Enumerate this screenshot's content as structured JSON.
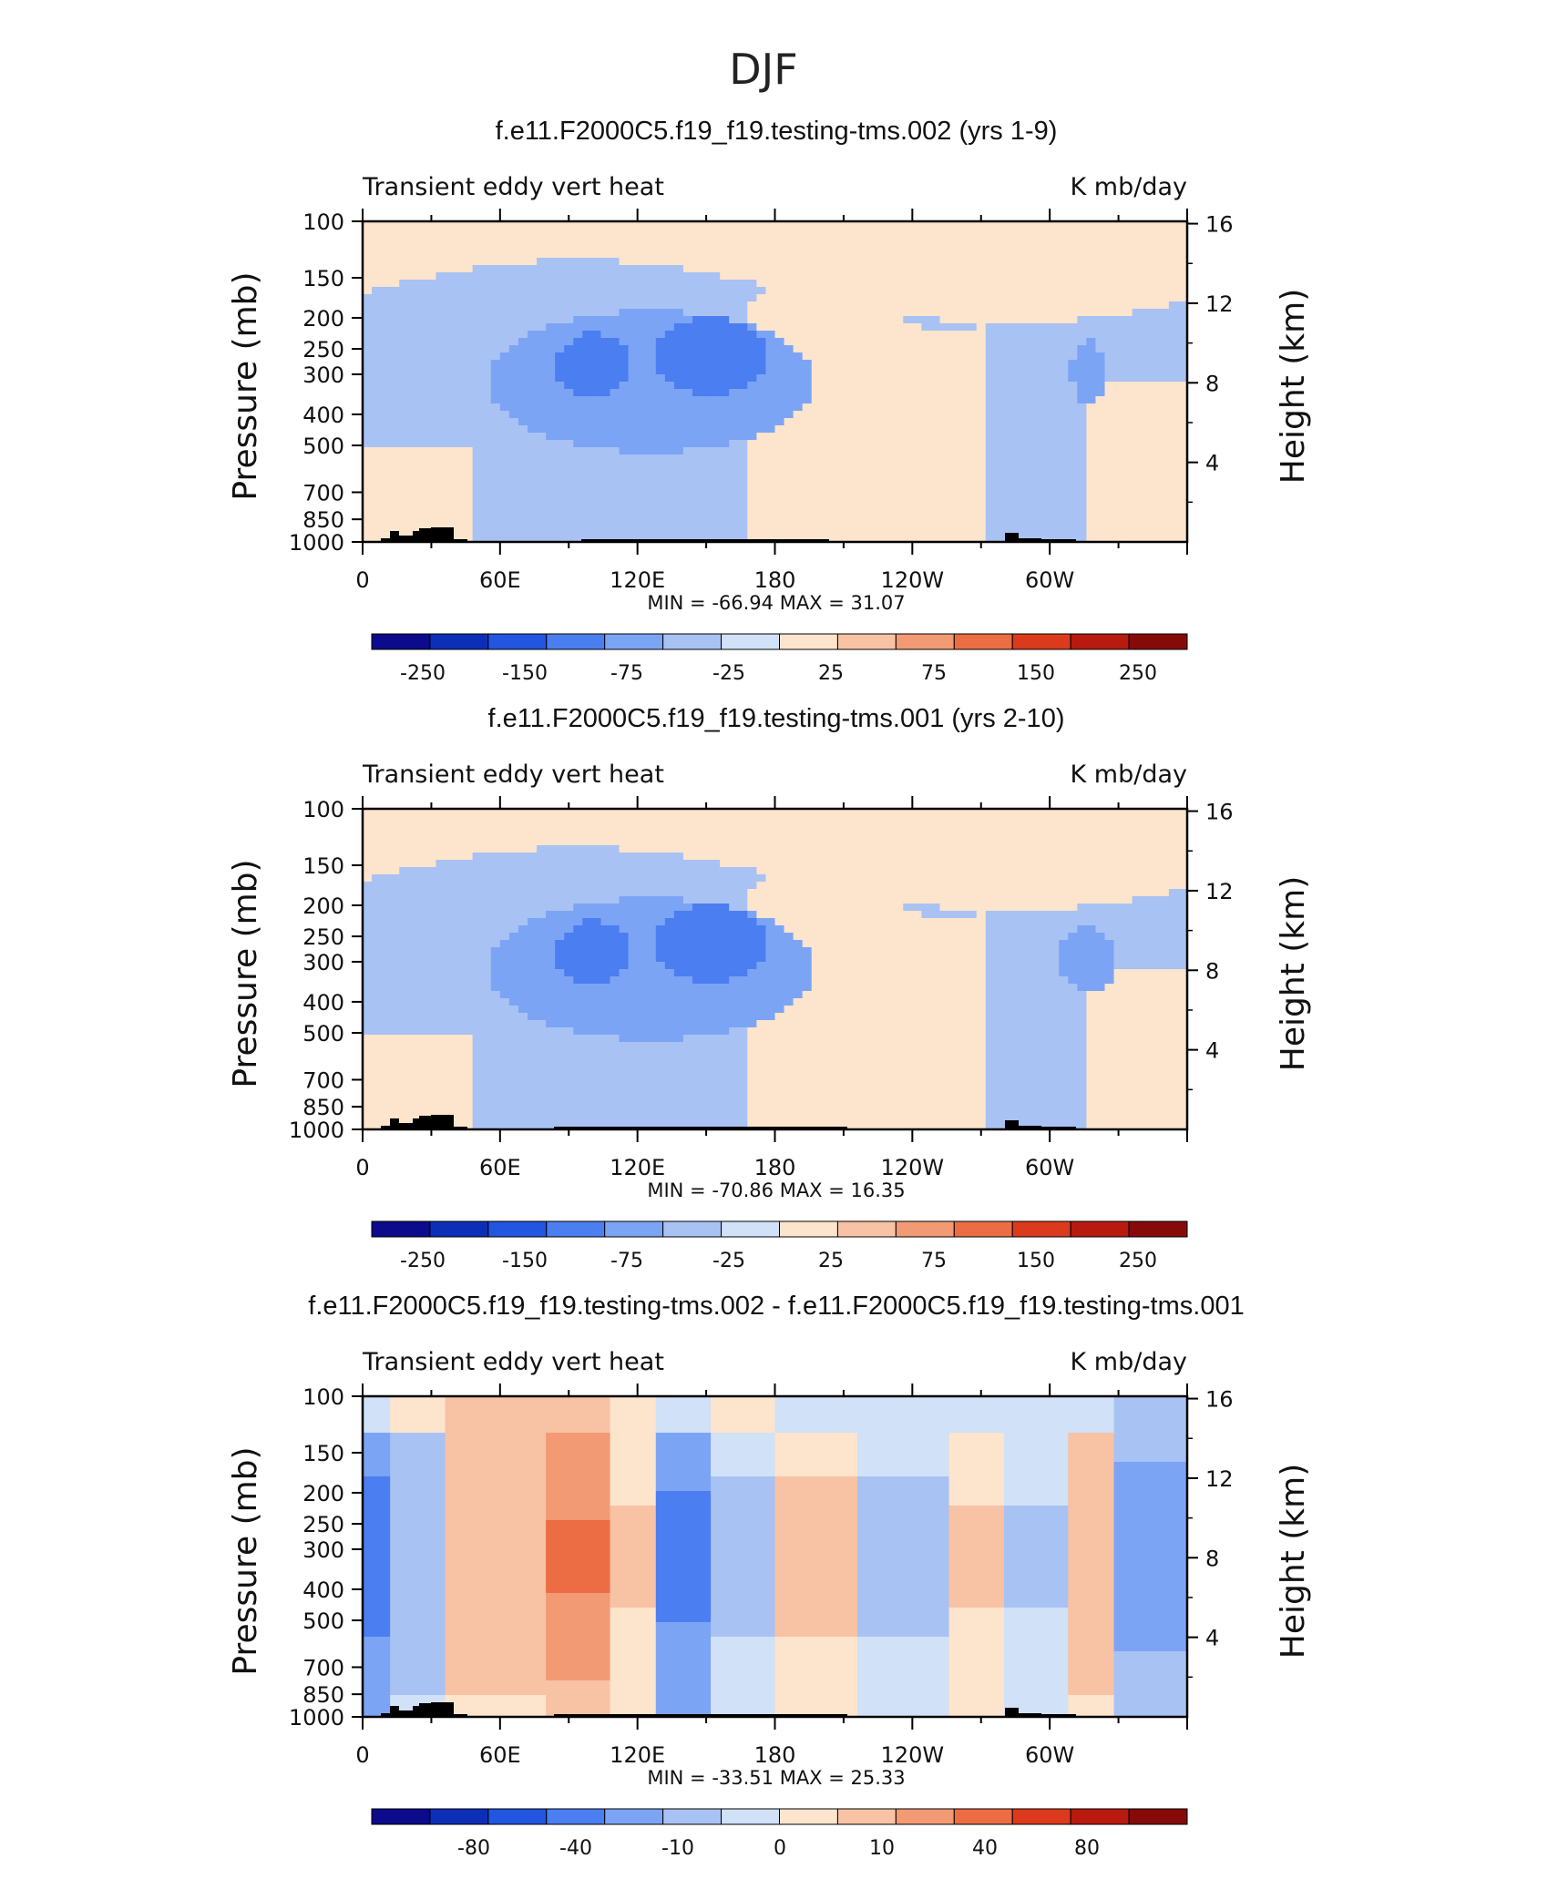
{
  "page_title": "DJF",
  "colors": {
    "abs_bar": [
      "#0b0b8c",
      "#0d2fb8",
      "#2255e0",
      "#4b7ef0",
      "#7ca4f5",
      "#a8c2f3",
      "#d0e1f8",
      "#fde4cc",
      "#f8c2a4",
      "#f29a74",
      "#ec6d44",
      "#dc3a1c",
      "#b81a10",
      "#860a0a"
    ],
    "diff_bar": [
      "#0b0b8c",
      "#0d2fb8",
      "#2255e0",
      "#4b7ef0",
      "#7ca4f5",
      "#a8c2f3",
      "#d0e1f8",
      "#fde4cc",
      "#f8c2a4",
      "#f29a74",
      "#ec6d44",
      "#dc3a1c",
      "#b81a10",
      "#860a0a"
    ],
    "terrain": "#000000"
  },
  "chart_data": [
    {
      "type": "heatmap",
      "title": "f.e11.F2000C5.f19_f19.testing-tms.002 (yrs 1-9)",
      "left_subtitle": "Transient eddy vert heat",
      "right_subtitle": "K mb/day",
      "ylabel": "Pressure (mb)",
      "ylabel_right": "Height (km)",
      "x_ticks": [
        "0",
        "60E",
        "120E",
        "180",
        "120W",
        "60W"
      ],
      "y_ticks": [
        "100",
        "150",
        "200",
        "250",
        "300",
        "400",
        "500",
        "700",
        "850",
        "1000"
      ],
      "y_ticks_right": [
        "16",
        "12",
        "8",
        "4"
      ],
      "stats": "MIN = -66.94   MAX =   31.07",
      "min": -66.94,
      "max": 31.07,
      "colorbar_labels": [
        "-250",
        "-150",
        "-75",
        "-25",
        "25",
        "75",
        "150",
        "250"
      ]
    },
    {
      "type": "heatmap",
      "title": "f.e11.F2000C5.f19_f19.testing-tms.001 (yrs 2-10)",
      "left_subtitle": "Transient eddy vert heat",
      "right_subtitle": "K mb/day",
      "ylabel": "Pressure (mb)",
      "ylabel_right": "Height (km)",
      "x_ticks": [
        "0",
        "60E",
        "120E",
        "180",
        "120W",
        "60W"
      ],
      "y_ticks": [
        "100",
        "150",
        "200",
        "250",
        "300",
        "400",
        "500",
        "700",
        "850",
        "1000"
      ],
      "y_ticks_right": [
        "16",
        "12",
        "8",
        "4"
      ],
      "stats": "MIN = -70.86   MAX =   16.35",
      "min": -70.86,
      "max": 16.35,
      "colorbar_labels": [
        "-250",
        "-150",
        "-75",
        "-25",
        "25",
        "75",
        "150",
        "250"
      ]
    },
    {
      "type": "heatmap",
      "title": "f.e11.F2000C5.f19_f19.testing-tms.002 - f.e11.F2000C5.f19_f19.testing-tms.001",
      "left_subtitle": "Transient eddy vert heat",
      "right_subtitle": "K mb/day",
      "ylabel": "Pressure (mb)",
      "ylabel_right": "Height (km)",
      "x_ticks": [
        "0",
        "60E",
        "120E",
        "180",
        "120W",
        "60W"
      ],
      "y_ticks": [
        "100",
        "150",
        "200",
        "250",
        "300",
        "400",
        "500",
        "700",
        "850",
        "1000"
      ],
      "y_ticks_right": [
        "16",
        "12",
        "8",
        "4"
      ],
      "stats": "MIN = -33.51   MAX =   25.33",
      "min": -33.51,
      "max": 25.33,
      "colorbar_labels": [
        "-80",
        "-40",
        "-10",
        "0",
        "10",
        "40",
        "80"
      ]
    }
  ]
}
